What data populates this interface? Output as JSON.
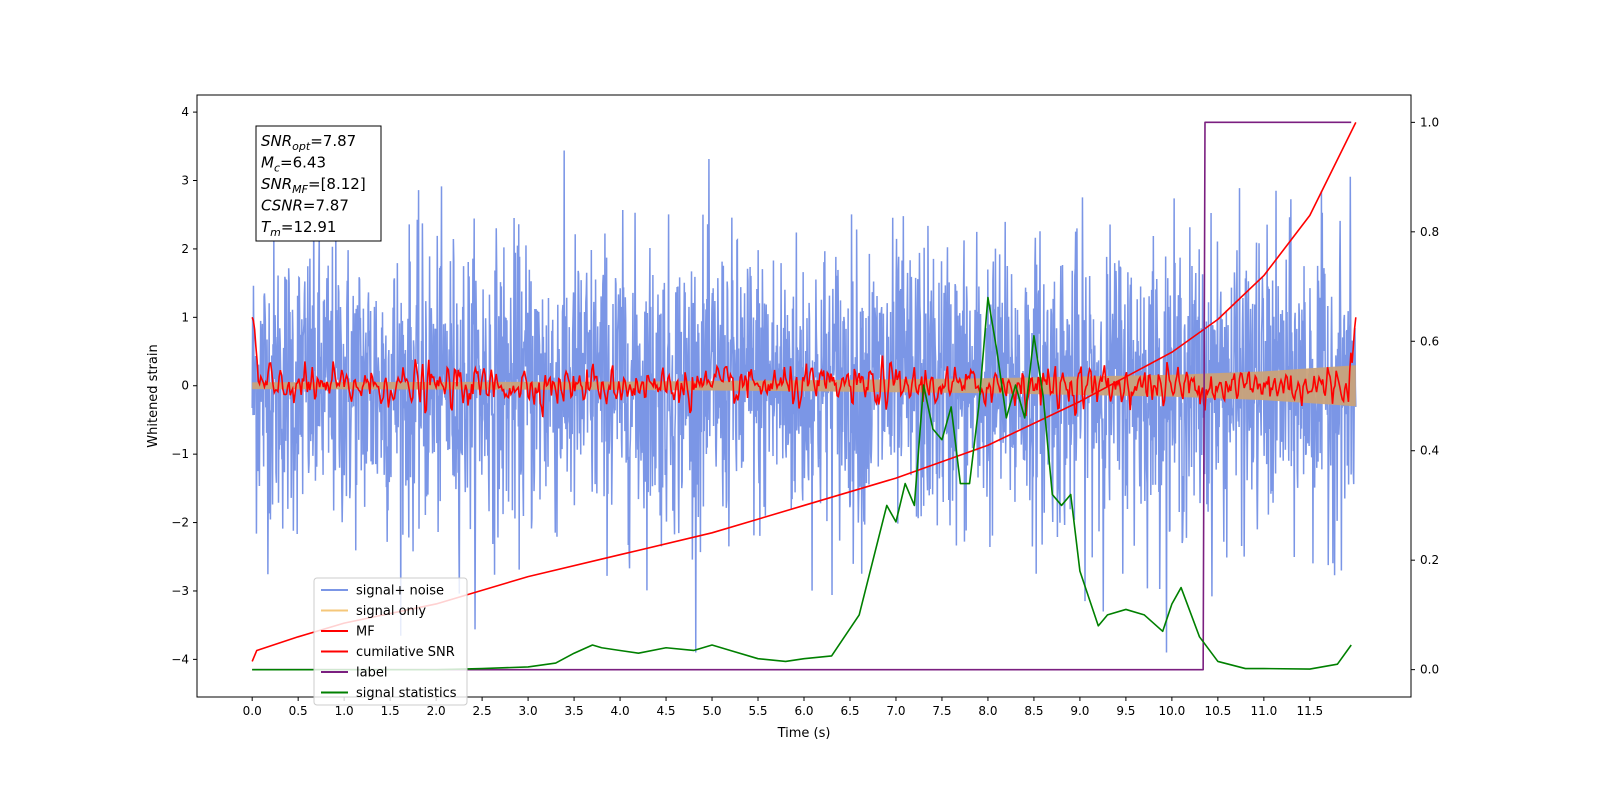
{
  "chart_data": {
    "type": "line",
    "xlabel": "Time (s)",
    "ylabel": "Whitened strain",
    "xlim": [
      -0.6,
      12.6
    ],
    "ylim": [
      -4.55,
      4.25
    ],
    "y2lim": [
      -0.05,
      1.05
    ],
    "xticks": [
      "0.0",
      "0.5",
      "1.0",
      "1.5",
      "2.0",
      "2.5",
      "3.0",
      "3.5",
      "4.0",
      "4.5",
      "5.0",
      "5.5",
      "6.0",
      "6.5",
      "7.0",
      "7.5",
      "8.0",
      "8.5",
      "9.0",
      "9.5",
      "10.0",
      "10.5",
      "11.0",
      "11.5"
    ],
    "yticks": [
      "4",
      "3",
      "2",
      "1",
      "0",
      "−1",
      "−2",
      "−3",
      "−4"
    ],
    "y2ticks": [
      "1.0",
      "0.8",
      "0.6",
      "0.4",
      "0.2",
      "0.0"
    ],
    "annotation_box": [
      {
        "base": "SNR",
        "sub": "opt",
        "value": "=7.87"
      },
      {
        "base": "M",
        "sub": "c",
        "value": "=6.43"
      },
      {
        "base": "SNR",
        "sub": "MF",
        "value": "=[8.12]"
      },
      {
        "base": "CSNR",
        "sub": "",
        "value": "=7.87"
      },
      {
        "base": "T",
        "sub": "m",
        "value": "=12.91"
      }
    ],
    "legend": {
      "position": "lower-left",
      "entries": [
        {
          "label": "signal+ noise",
          "color": "#7b96e6"
        },
        {
          "label": "signal only",
          "color": "#f5c77a"
        },
        {
          "label": "MF",
          "color": "#ff0000"
        },
        {
          "label": "cumilative SNR",
          "color": "#ff0000"
        },
        {
          "label": "label",
          "color": "#7b1f80"
        },
        {
          "label": "signal statistics",
          "color": "#008000"
        }
      ]
    },
    "series": [
      {
        "name": "signal+ noise",
        "axis": "left",
        "color": "#7b96e6",
        "style": "gaussian-noise",
        "duration_s": 12.0,
        "std": 1.0,
        "max_abs": 3.9
      },
      {
        "name": "signal only",
        "axis": "left",
        "color": "#c9a27a",
        "style": "chirp-envelope",
        "x": [
          0,
          2,
          4,
          6,
          8,
          10,
          11,
          12
        ],
        "amplitude": [
          0.05,
          0.055,
          0.06,
          0.08,
          0.11,
          0.16,
          0.21,
          0.3
        ]
      },
      {
        "name": "MF",
        "axis": "left",
        "color": "#ff0000",
        "style": "matched-filter",
        "duration_s": 12.0,
        "std": 0.12,
        "start_value": 1.0,
        "end_value": 1.0
      },
      {
        "name": "cumilative SNR",
        "axis": "right",
        "color": "#ff0000",
        "x": [
          0.0,
          0.05,
          0.5,
          1.0,
          2.0,
          3.0,
          4.0,
          5.0,
          6.0,
          7.0,
          8.0,
          9.0,
          10.0,
          10.5,
          11.0,
          11.5,
          12.0
        ],
        "y": [
          0.015,
          0.035,
          0.06,
          0.085,
          0.12,
          0.17,
          0.21,
          0.25,
          0.3,
          0.35,
          0.41,
          0.49,
          0.58,
          0.64,
          0.72,
          0.83,
          1.0
        ]
      },
      {
        "name": "label",
        "axis": "right",
        "color": "#7b1f80",
        "x": [
          0.0,
          10.34,
          10.36,
          11.95
        ],
        "y": [
          0.0,
          0.0,
          1.0,
          1.0
        ]
      },
      {
        "name": "signal statistics",
        "axis": "right",
        "color": "#008000",
        "x": [
          0.0,
          0.5,
          1.0,
          1.5,
          2.0,
          2.5,
          3.0,
          3.3,
          3.5,
          3.7,
          3.8,
          4.0,
          4.2,
          4.5,
          4.8,
          5.0,
          5.2,
          5.5,
          5.8,
          6.0,
          6.3,
          6.6,
          6.9,
          7.0,
          7.1,
          7.2,
          7.3,
          7.4,
          7.5,
          7.6,
          7.7,
          7.8,
          7.9,
          8.0,
          8.1,
          8.2,
          8.3,
          8.4,
          8.5,
          8.6,
          8.7,
          8.8,
          8.9,
          9.0,
          9.2,
          9.3,
          9.5,
          9.7,
          9.9,
          10.0,
          10.1,
          10.3,
          10.5,
          10.8,
          11.0,
          11.5,
          11.8,
          11.95
        ],
        "y": [
          0.0,
          0.0,
          0.0,
          0.0,
          0.0,
          0.002,
          0.005,
          0.012,
          0.03,
          0.045,
          0.04,
          0.035,
          0.03,
          0.04,
          0.035,
          0.045,
          0.035,
          0.02,
          0.015,
          0.02,
          0.025,
          0.1,
          0.3,
          0.27,
          0.34,
          0.3,
          0.52,
          0.44,
          0.42,
          0.48,
          0.34,
          0.34,
          0.48,
          0.68,
          0.58,
          0.46,
          0.52,
          0.46,
          0.61,
          0.5,
          0.32,
          0.3,
          0.32,
          0.18,
          0.08,
          0.1,
          0.11,
          0.1,
          0.07,
          0.12,
          0.15,
          0.06,
          0.015,
          0.002,
          0.002,
          0.001,
          0.01,
          0.045
        ]
      }
    ],
    "grid": false
  }
}
